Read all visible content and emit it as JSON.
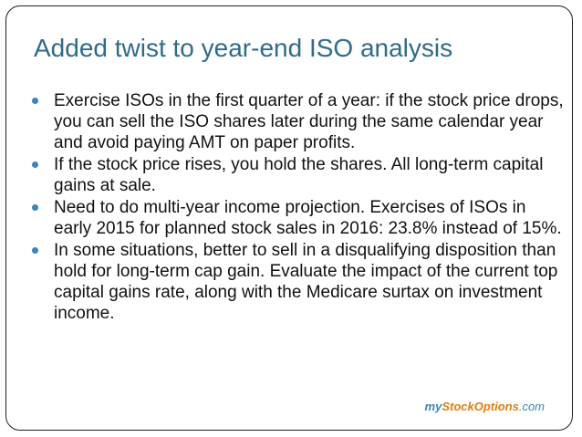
{
  "slide": {
    "title": "Added twist to year-end ISO analysis",
    "bullets": [
      "Exercise ISOs in the first quarter of a year: if the stock price drops, you can sell the ISO shares later during the same calendar year and avoid paying AMT on paper profits.",
      "If the stock price rises, you hold the shares. All long-term capital gains at sale.",
      "Need to do multi-year income projection. Exercises of ISOs in early 2015 for planned stock sales in 2016: 23.8% instead of 15%.",
      "In some situations, better to sell in a disqualifying disposition than hold for long-term cap gain. Evaluate the impact of the current top capital gains rate, along with the Medicare surtax on investment income."
    ],
    "logo": {
      "part1": "my",
      "part2": "StockOptions",
      "part3": ".com"
    }
  },
  "colors": {
    "title": "#2f6b8a",
    "bullet": "#3a86b8",
    "logo_blue": "#3a86b8",
    "logo_orange": "#e07d10"
  }
}
